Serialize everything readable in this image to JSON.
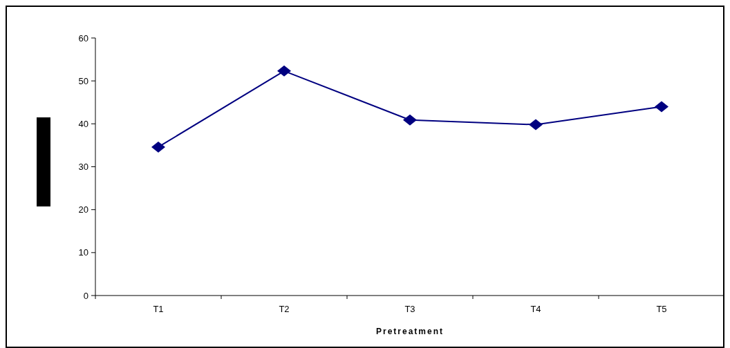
{
  "chart_data": {
    "type": "line",
    "xlabel": "Pretreatment",
    "categories": [
      "T1",
      "T2",
      "T3",
      "T4",
      "T5"
    ],
    "series": [
      {
        "color": "#000080",
        "values": [
          34.6,
          52.3,
          40.9,
          39.8,
          44.0
        ]
      }
    ],
    "ylim": [
      0,
      60
    ],
    "yticks": [
      0,
      10,
      20,
      30,
      40,
      50,
      60
    ],
    "marker": "diamond",
    "line_style": "solid"
  }
}
